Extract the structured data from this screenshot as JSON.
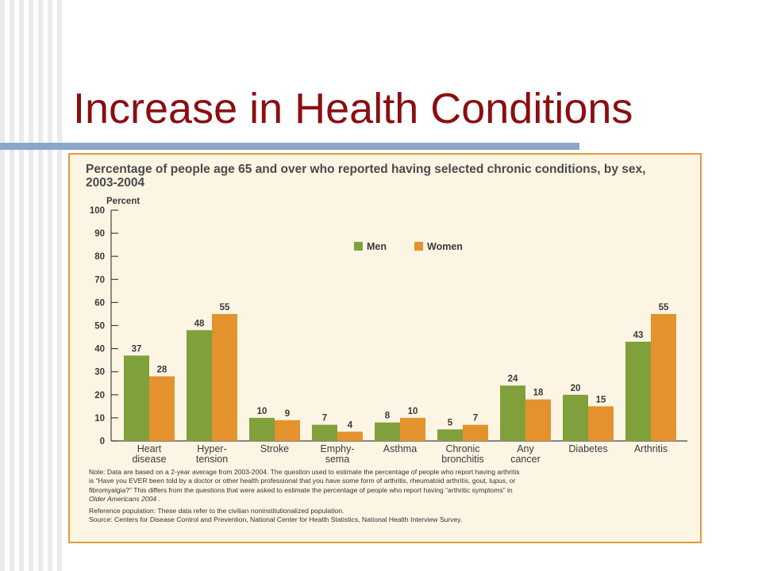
{
  "slide": {
    "title": "Increase in Health Conditions"
  },
  "chart_data": {
    "type": "bar",
    "title": "Percentage of people age 65 and over who reported having selected chronic conditions, by sex, 2003-2004",
    "ylabel": "Percent",
    "ylim": [
      0,
      100
    ],
    "yticks": [
      0,
      10,
      20,
      30,
      40,
      50,
      60,
      70,
      80,
      90,
      100
    ],
    "categories": [
      [
        "Heart",
        "disease"
      ],
      [
        "Hyper-",
        "tension"
      ],
      [
        "Stroke"
      ],
      [
        "Emphy-",
        "sema"
      ],
      [
        "Asthma"
      ],
      [
        "Chronic",
        "bronchitis"
      ],
      [
        "Any",
        "cancer"
      ],
      [
        "Diabetes"
      ],
      [
        "Arthritis"
      ]
    ],
    "series": [
      {
        "name": "Men",
        "color": "#7fa03b",
        "values": [
          37,
          48,
          10,
          7,
          8,
          5,
          24,
          20,
          43
        ]
      },
      {
        "name": "Women",
        "color": "#e3922e",
        "values": [
          28,
          55,
          9,
          4,
          10,
          7,
          18,
          15,
          55
        ]
      }
    ],
    "legend": "top-center",
    "grid": false
  },
  "notes": {
    "note_line1": "Note: Data are based on a 2-year average from 2003-2004. The question used to estimate the percentage of people who report having arthritis",
    "note_line2": "is “Have you EVER been told by a doctor or other health professional that you have some form of arthritis, rheumatoid arthritis, gout, lupus, or",
    "note_line3": "fibromyalgia?” This differs from the questions that were asked to estimate the percentage of people who report having “arthritic symptoms” in",
    "note_line4": "Older Americans 2004 .",
    "reference": "Reference population: These data refer to the civilian noninstitutionalized population.",
    "source": "Source: Centers for Disease Control and Prevention, National Center for Health Statistics, National Health Interview Survey."
  },
  "colors": {
    "title": "#8b0e12",
    "panel_border": "#e39a3f",
    "panel_background": "#fcf5e4",
    "men": "#7fa03b",
    "women": "#e3922e"
  }
}
